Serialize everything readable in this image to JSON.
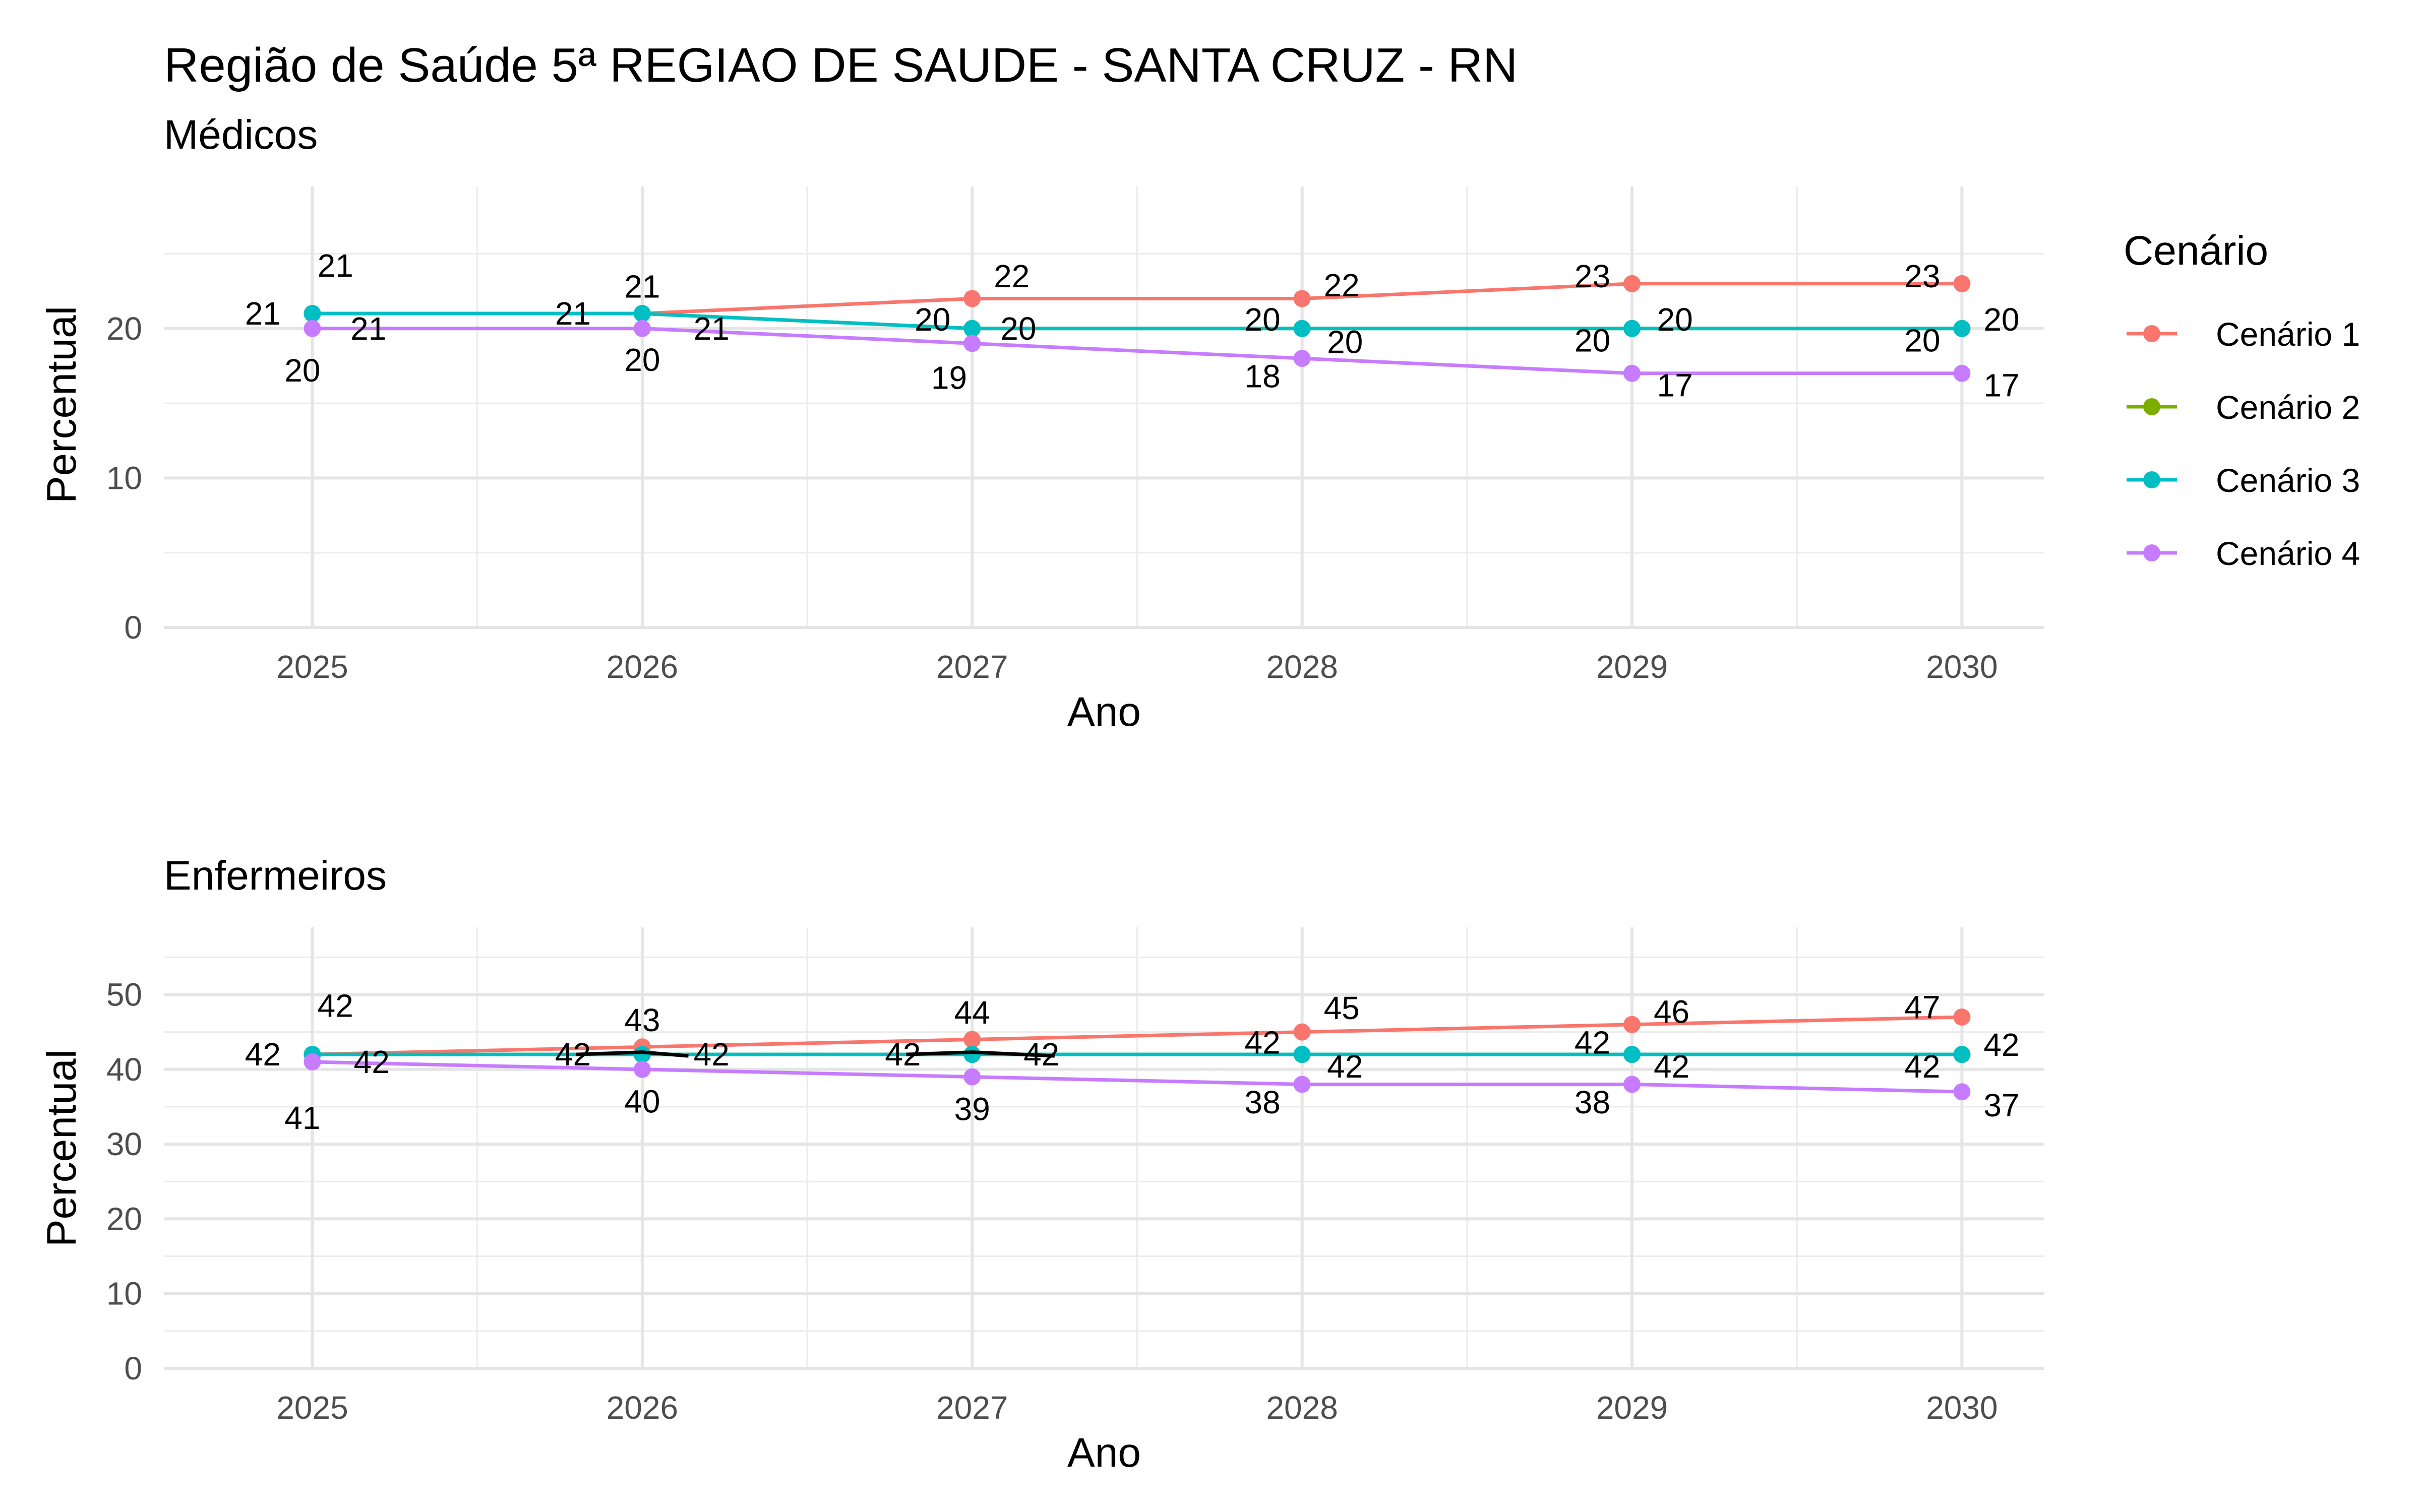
{
  "title": "Região de Saúde 5ª REGIAO DE SAUDE - SANTA CRUZ - RN",
  "legend": {
    "title": "Cenário",
    "position": "right",
    "items": [
      {
        "name": "Cenário 1",
        "color": "#F8766D"
      },
      {
        "name": "Cenário 2",
        "color": "#7CAE00"
      },
      {
        "name": "Cenário 3",
        "color": "#00BFC4"
      },
      {
        "name": "Cenário 4",
        "color": "#C77CFF"
      }
    ]
  },
  "chart_data": [
    {
      "type": "line",
      "subtitle": "Médicos",
      "xlabel": "Ano",
      "ylabel": "Percentual",
      "x": [
        2025,
        2026,
        2027,
        2028,
        2029,
        2030
      ],
      "xticks": [
        "2025",
        "2026",
        "2027",
        "2028",
        "2029",
        "2030"
      ],
      "yticks": [
        0,
        10,
        20
      ],
      "ylim": [
        0,
        29.5
      ],
      "grid": true,
      "series": [
        {
          "name": "Cenário 1",
          "color": "#F8766D",
          "values": [
            21,
            21,
            22,
            22,
            23,
            23
          ]
        },
        {
          "name": "Cenário 2",
          "color": "#7CAE00",
          "values": [
            21,
            21,
            20,
            20,
            20,
            20
          ]
        },
        {
          "name": "Cenário 3",
          "color": "#00BFC4",
          "values": [
            21,
            21,
            20,
            20,
            20,
            20
          ]
        },
        {
          "name": "Cenário 4",
          "color": "#C77CFF",
          "values": [
            20,
            20,
            19,
            18,
            17,
            17
          ]
        }
      ],
      "labels": [
        {
          "text": "21",
          "x": 2025,
          "y": 21,
          "dx": 0.07,
          "dy": 3.2
        },
        {
          "text": "21",
          "x": 2025,
          "y": 21,
          "dx": -0.15,
          "dy": 0
        },
        {
          "text": "21",
          "x": 2025,
          "y": 20,
          "dx": 0.17,
          "dy": 0
        },
        {
          "text": "20",
          "x": 2025,
          "y": 20,
          "dx": -0.03,
          "dy": -2.8
        },
        {
          "text": "21",
          "x": 2026,
          "y": 21,
          "dx": 0,
          "dy": 1.8
        },
        {
          "text": "21",
          "x": 2026,
          "y": 21,
          "dx": -0.21,
          "dy": 0
        },
        {
          "text": "21",
          "x": 2026,
          "y": 20,
          "dx": 0.21,
          "dy": 0
        },
        {
          "text": "20",
          "x": 2026,
          "y": 20,
          "dx": 0,
          "dy": -2.1
        },
        {
          "text": "22",
          "x": 2027,
          "y": 22,
          "dx": 0.12,
          "dy": 1.5
        },
        {
          "text": "20",
          "x": 2027,
          "y": 20,
          "dx": -0.12,
          "dy": 0.6
        },
        {
          "text": "20",
          "x": 2027,
          "y": 20,
          "dx": 0.14,
          "dy": 0
        },
        {
          "text": "19",
          "x": 2027,
          "y": 19,
          "dx": -0.07,
          "dy": -2.3
        },
        {
          "text": "22",
          "x": 2028,
          "y": 22,
          "dx": 0.12,
          "dy": 0.9
        },
        {
          "text": "20",
          "x": 2028,
          "y": 20,
          "dx": -0.12,
          "dy": 0.6
        },
        {
          "text": "20",
          "x": 2028,
          "y": 20,
          "dx": 0.13,
          "dy": -0.9
        },
        {
          "text": "18",
          "x": 2028,
          "y": 18,
          "dx": -0.12,
          "dy": -1.2
        },
        {
          "text": "23",
          "x": 2029,
          "y": 23,
          "dx": -0.12,
          "dy": 0.5
        },
        {
          "text": "20",
          "x": 2029,
          "y": 20,
          "dx": 0.13,
          "dy": 0.6
        },
        {
          "text": "20",
          "x": 2029,
          "y": 20,
          "dx": -0.12,
          "dy": -0.8
        },
        {
          "text": "17",
          "x": 2029,
          "y": 17,
          "dx": 0.13,
          "dy": -0.8
        },
        {
          "text": "23",
          "x": 2030,
          "y": 23,
          "dx": -0.12,
          "dy": 0.5
        },
        {
          "text": "20",
          "x": 2030,
          "y": 20,
          "dx": 0.12,
          "dy": 0.6
        },
        {
          "text": "20",
          "x": 2030,
          "y": 20,
          "dx": -0.12,
          "dy": -0.8
        },
        {
          "text": "17",
          "x": 2030,
          "y": 17,
          "dx": 0.12,
          "dy": -0.8
        }
      ]
    },
    {
      "type": "line",
      "subtitle": "Enfermeiros",
      "xlabel": "Ano",
      "ylabel": "Percentual",
      "x": [
        2025,
        2026,
        2027,
        2028,
        2029,
        2030
      ],
      "xticks": [
        "2025",
        "2026",
        "2027",
        "2028",
        "2029",
        "2030"
      ],
      "yticks": [
        0,
        10,
        20,
        30,
        40,
        50
      ],
      "ylim": [
        0,
        59
      ],
      "grid": true,
      "series": [
        {
          "name": "Cenário 1",
          "color": "#F8766D",
          "values": [
            42,
            43,
            44,
            45,
            46,
            47
          ]
        },
        {
          "name": "Cenário 2",
          "color": "#7CAE00",
          "values": [
            42,
            42,
            42,
            42,
            42,
            42
          ]
        },
        {
          "name": "Cenário 3",
          "color": "#00BFC4",
          "values": [
            42,
            42,
            42,
            42,
            42,
            42
          ]
        },
        {
          "name": "Cenário 4",
          "color": "#C77CFF",
          "values": [
            41,
            40,
            39,
            38,
            38,
            37
          ]
        }
      ],
      "overlay_segments": [
        {
          "color": "#000000",
          "points": [
            [
              2025.8,
              42
            ],
            [
              2026,
              42.3
            ],
            [
              2026.14,
              41.8
            ]
          ]
        },
        {
          "color": "#000000",
          "points": [
            [
              2026.8,
              42
            ],
            [
              2027,
              42.3
            ],
            [
              2027.25,
              41.8
            ]
          ]
        }
      ],
      "labels": [
        {
          "text": "42",
          "x": 2025,
          "y": 42,
          "dx": 0.07,
          "dy": 6.5
        },
        {
          "text": "42",
          "x": 2025,
          "y": 42,
          "dx": -0.15,
          "dy": 0
        },
        {
          "text": "42",
          "x": 2025,
          "y": 41,
          "dx": 0.18,
          "dy": 0
        },
        {
          "text": "41",
          "x": 2025,
          "y": 41,
          "dx": -0.03,
          "dy": -7.5
        },
        {
          "text": "43",
          "x": 2026,
          "y": 43,
          "dx": 0,
          "dy": 3.6
        },
        {
          "text": "42",
          "x": 2026,
          "y": 42,
          "dx": -0.21,
          "dy": 0
        },
        {
          "text": "42",
          "x": 2026,
          "y": 42,
          "dx": 0.21,
          "dy": 0
        },
        {
          "text": "40",
          "x": 2026,
          "y": 40,
          "dx": 0,
          "dy": -4.3
        },
        {
          "text": "44",
          "x": 2027,
          "y": 44,
          "dx": 0,
          "dy": 3.6
        },
        {
          "text": "42",
          "x": 2027,
          "y": 42,
          "dx": -0.21,
          "dy": 0
        },
        {
          "text": "42",
          "x": 2027,
          "y": 42,
          "dx": 0.21,
          "dy": 0
        },
        {
          "text": "39",
          "x": 2027,
          "y": 39,
          "dx": 0,
          "dy": -4.3
        },
        {
          "text": "45",
          "x": 2028,
          "y": 45,
          "dx": 0.12,
          "dy": 3.2
        },
        {
          "text": "42",
          "x": 2028,
          "y": 42,
          "dx": -0.12,
          "dy": 1.6
        },
        {
          "text": "42",
          "x": 2028,
          "y": 42,
          "dx": 0.13,
          "dy": -1.6
        },
        {
          "text": "38",
          "x": 2028,
          "y": 38,
          "dx": -0.12,
          "dy": -2.4
        },
        {
          "text": "46",
          "x": 2029,
          "y": 46,
          "dx": 0.12,
          "dy": 1.7
        },
        {
          "text": "42",
          "x": 2029,
          "y": 42,
          "dx": -0.12,
          "dy": 1.6
        },
        {
          "text": "42",
          "x": 2029,
          "y": 42,
          "dx": 0.12,
          "dy": -1.6
        },
        {
          "text": "38",
          "x": 2029,
          "y": 38,
          "dx": -0.12,
          "dy": -2.4
        },
        {
          "text": "47",
          "x": 2030,
          "y": 47,
          "dx": -0.12,
          "dy": 1.3
        },
        {
          "text": "42",
          "x": 2030,
          "y": 42,
          "dx": 0.12,
          "dy": 1.3
        },
        {
          "text": "42",
          "x": 2030,
          "y": 42,
          "dx": -0.12,
          "dy": -1.6
        },
        {
          "text": "37",
          "x": 2030,
          "y": 37,
          "dx": 0.12,
          "dy": -1.8
        }
      ]
    }
  ]
}
